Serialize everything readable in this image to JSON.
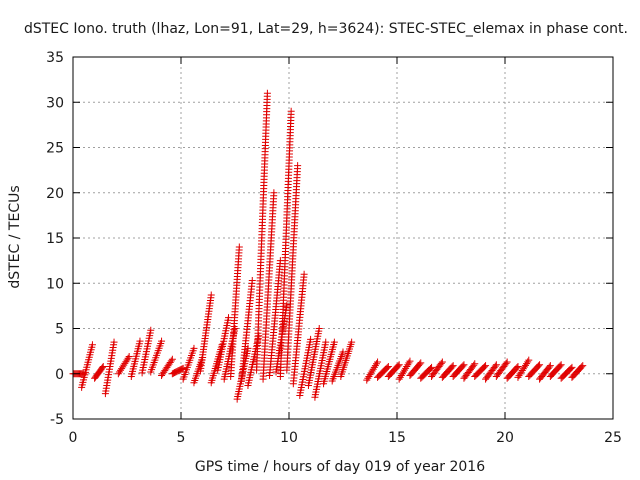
{
  "chart_data": {
    "type": "scatter",
    "title": "dSTEC Iono. truth (lhaz, Lon=91, Lat=29, h=3624): STEC-STEC_elemax in phase cont.",
    "xlabel": "GPS time / hours of day 019 of year 2016",
    "ylabel": "dSTEC  / TECUs",
    "xlim": [
      0,
      25
    ],
    "ylim": [
      -5,
      35
    ],
    "xticks": [
      "0",
      "5",
      "10",
      "15",
      "20",
      "25"
    ],
    "yticks": [
      "-5",
      "0",
      "5",
      "10",
      "15",
      "20",
      "25",
      "30",
      "35"
    ],
    "grid": true,
    "legend": "none",
    "marker": "+",
    "color": "#e00000",
    "series": [
      {
        "arcs": [
          {
            "x": [
              0.0,
              0.5
            ],
            "y": [
              0.0,
              0.0
            ]
          },
          {
            "x": [
              0.4,
              0.9
            ],
            "y": [
              -1.5,
              3.2
            ]
          },
          {
            "x": [
              1.0,
              1.4
            ],
            "y": [
              -0.5,
              0.8
            ]
          },
          {
            "x": [
              1.5,
              1.9
            ],
            "y": [
              -2.2,
              3.5
            ]
          },
          {
            "x": [
              2.1,
              2.6
            ],
            "y": [
              0.0,
              1.9
            ]
          },
          {
            "x": [
              2.7,
              3.1
            ],
            "y": [
              -0.3,
              3.6
            ]
          },
          {
            "x": [
              3.2,
              3.6
            ],
            "y": [
              0.1,
              4.8
            ]
          },
          {
            "x": [
              3.6,
              4.1
            ],
            "y": [
              0.2,
              3.6
            ]
          },
          {
            "x": [
              4.1,
              4.6
            ],
            "y": [
              -0.2,
              1.6
            ]
          },
          {
            "x": [
              4.6,
              5.1
            ],
            "y": [
              0.0,
              0.6
            ]
          },
          {
            "x": [
              5.1,
              5.6
            ],
            "y": [
              -0.6,
              2.8
            ]
          },
          {
            "x": [
              5.6,
              6.0
            ],
            "y": [
              -1.0,
              1.8
            ]
          },
          {
            "x": [
              5.9,
              6.4
            ],
            "y": [
              0.3,
              8.7
            ]
          },
          {
            "x": [
              6.4,
              6.9
            ],
            "y": [
              -1.0,
              3.2
            ]
          },
          {
            "x": [
              6.7,
              7.2
            ],
            "y": [
              0.4,
              6.2
            ]
          },
          {
            "x": [
              7.0,
              7.5
            ],
            "y": [
              -0.6,
              5.0
            ]
          },
          {
            "x": [
              7.3,
              7.7
            ],
            "y": [
              -0.3,
              14.0
            ]
          },
          {
            "x": [
              7.6,
              8.1
            ],
            "y": [
              -2.8,
              2.8
            ]
          },
          {
            "x": [
              7.8,
              8.3
            ],
            "y": [
              -0.8,
              10.3
            ]
          },
          {
            "x": [
              8.1,
              8.6
            ],
            "y": [
              -1.3,
              4.2
            ]
          },
          {
            "x": [
              8.5,
              9.0
            ],
            "y": [
              0.4,
              31.0
            ]
          },
          {
            "x": [
              8.8,
              9.3
            ],
            "y": [
              -0.6,
              20.0
            ]
          },
          {
            "x": [
              9.1,
              9.6
            ],
            "y": [
              -0.2,
              12.5
            ]
          },
          {
            "x": [
              9.4,
              9.9
            ],
            "y": [
              0.2,
              7.6
            ]
          },
          {
            "x": [
              9.6,
              10.1
            ],
            "y": [
              -0.3,
              29.0
            ]
          },
          {
            "x": [
              9.9,
              10.4
            ],
            "y": [
              0.4,
              23.0
            ]
          },
          {
            "x": [
              10.2,
              10.7
            ],
            "y": [
              -1.1,
              11.0
            ]
          },
          {
            "x": [
              10.5,
              11.0
            ],
            "y": [
              -2.4,
              3.8
            ]
          },
          {
            "x": [
              10.9,
              11.4
            ],
            "y": [
              -1.3,
              5.0
            ]
          },
          {
            "x": [
              11.2,
              11.7
            ],
            "y": [
              -2.6,
              3.5
            ]
          },
          {
            "x": [
              11.6,
              12.1
            ],
            "y": [
              -1.1,
              3.5
            ]
          },
          {
            "x": [
              12.0,
              12.5
            ],
            "y": [
              -0.8,
              2.4
            ]
          },
          {
            "x": [
              12.4,
              12.9
            ],
            "y": [
              -0.3,
              3.5
            ]
          },
          {
            "x": [
              13.6,
              14.1
            ],
            "y": [
              -0.7,
              1.3
            ]
          },
          {
            "x": [
              14.1,
              14.6
            ],
            "y": [
              -0.4,
              0.8
            ]
          },
          {
            "x": [
              14.6,
              15.1
            ],
            "y": [
              -0.3,
              1.0
            ]
          },
          {
            "x": [
              15.1,
              15.6
            ],
            "y": [
              -0.6,
              1.4
            ]
          },
          {
            "x": [
              15.6,
              16.1
            ],
            "y": [
              -0.2,
              1.2
            ]
          },
          {
            "x": [
              16.1,
              16.6
            ],
            "y": [
              -0.5,
              0.7
            ]
          },
          {
            "x": [
              16.6,
              17.1
            ],
            "y": [
              -0.3,
              1.3
            ]
          },
          {
            "x": [
              17.1,
              17.6
            ],
            "y": [
              -0.4,
              0.9
            ]
          },
          {
            "x": [
              17.6,
              18.1
            ],
            "y": [
              -0.3,
              1.0
            ]
          },
          {
            "x": [
              18.1,
              18.6
            ],
            "y": [
              -0.5,
              1.1
            ]
          },
          {
            "x": [
              18.6,
              19.1
            ],
            "y": [
              -0.3,
              0.9
            ]
          },
          {
            "x": [
              19.1,
              19.6
            ],
            "y": [
              -0.6,
              1.0
            ]
          },
          {
            "x": [
              19.6,
              20.1
            ],
            "y": [
              -0.3,
              1.3
            ]
          },
          {
            "x": [
              20.1,
              20.6
            ],
            "y": [
              -0.5,
              0.8
            ]
          },
          {
            "x": [
              20.6,
              21.1
            ],
            "y": [
              -0.4,
              1.5
            ]
          },
          {
            "x": [
              21.1,
              21.6
            ],
            "y": [
              -0.3,
              1.0
            ]
          },
          {
            "x": [
              21.6,
              22.1
            ],
            "y": [
              -0.6,
              0.9
            ]
          },
          {
            "x": [
              22.1,
              22.6
            ],
            "y": [
              -0.3,
              1.0
            ]
          },
          {
            "x": [
              22.6,
              23.1
            ],
            "y": [
              -0.5,
              0.7
            ]
          },
          {
            "x": [
              23.1,
              23.6
            ],
            "y": [
              -0.4,
              0.9
            ]
          }
        ]
      }
    ]
  }
}
